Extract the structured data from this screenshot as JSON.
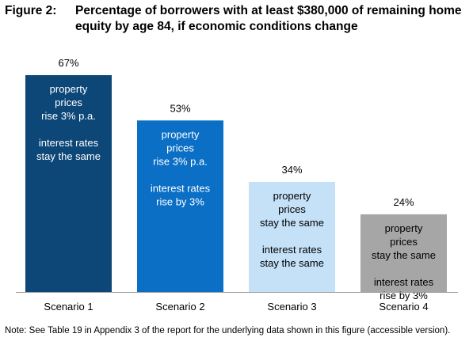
{
  "figure": {
    "number": "Figure 2:",
    "title": "Percentage of borrowers with at least $380,000 of remaining home equity by age 84, if economic conditions change"
  },
  "note": "Note: See Table 19 in Appendix 3 of the report for the underlying data shown in this figure (accessible version).",
  "chart_data": {
    "type": "bar",
    "title": "Percentage of borrowers with at least $380,000 of remaining home equity by age 84, if economic conditions change",
    "xlabel": "",
    "ylabel": "",
    "ylim": [
      0,
      67
    ],
    "grid": false,
    "categories": [
      "Scenario 1",
      "Scenario 2",
      "Scenario 3",
      "Scenario 4"
    ],
    "values": [
      67,
      53,
      34,
      24
    ],
    "value_labels": [
      "67%",
      "53%",
      "34%",
      "24%"
    ],
    "bar_colors": [
      "#0d4778",
      "#0b6fc6",
      "#c5e1f7",
      "#a6a6a6"
    ],
    "bar_text_colors": [
      "#ffffff",
      "#ffffff",
      "#000000",
      "#000000"
    ],
    "annotations": [
      [
        "property",
        "prices",
        "rise 3% p.a.",
        "",
        "interest rates",
        "stay the same"
      ],
      [
        "property",
        "prices",
        "rise 3% p.a.",
        "",
        "interest rates",
        "rise by 3%"
      ],
      [
        "property",
        "prices",
        "stay the same",
        "",
        "interest rates",
        "stay the same"
      ],
      [
        "property",
        "prices",
        "stay the same",
        "",
        "interest rates",
        "rise by 3%"
      ]
    ]
  }
}
